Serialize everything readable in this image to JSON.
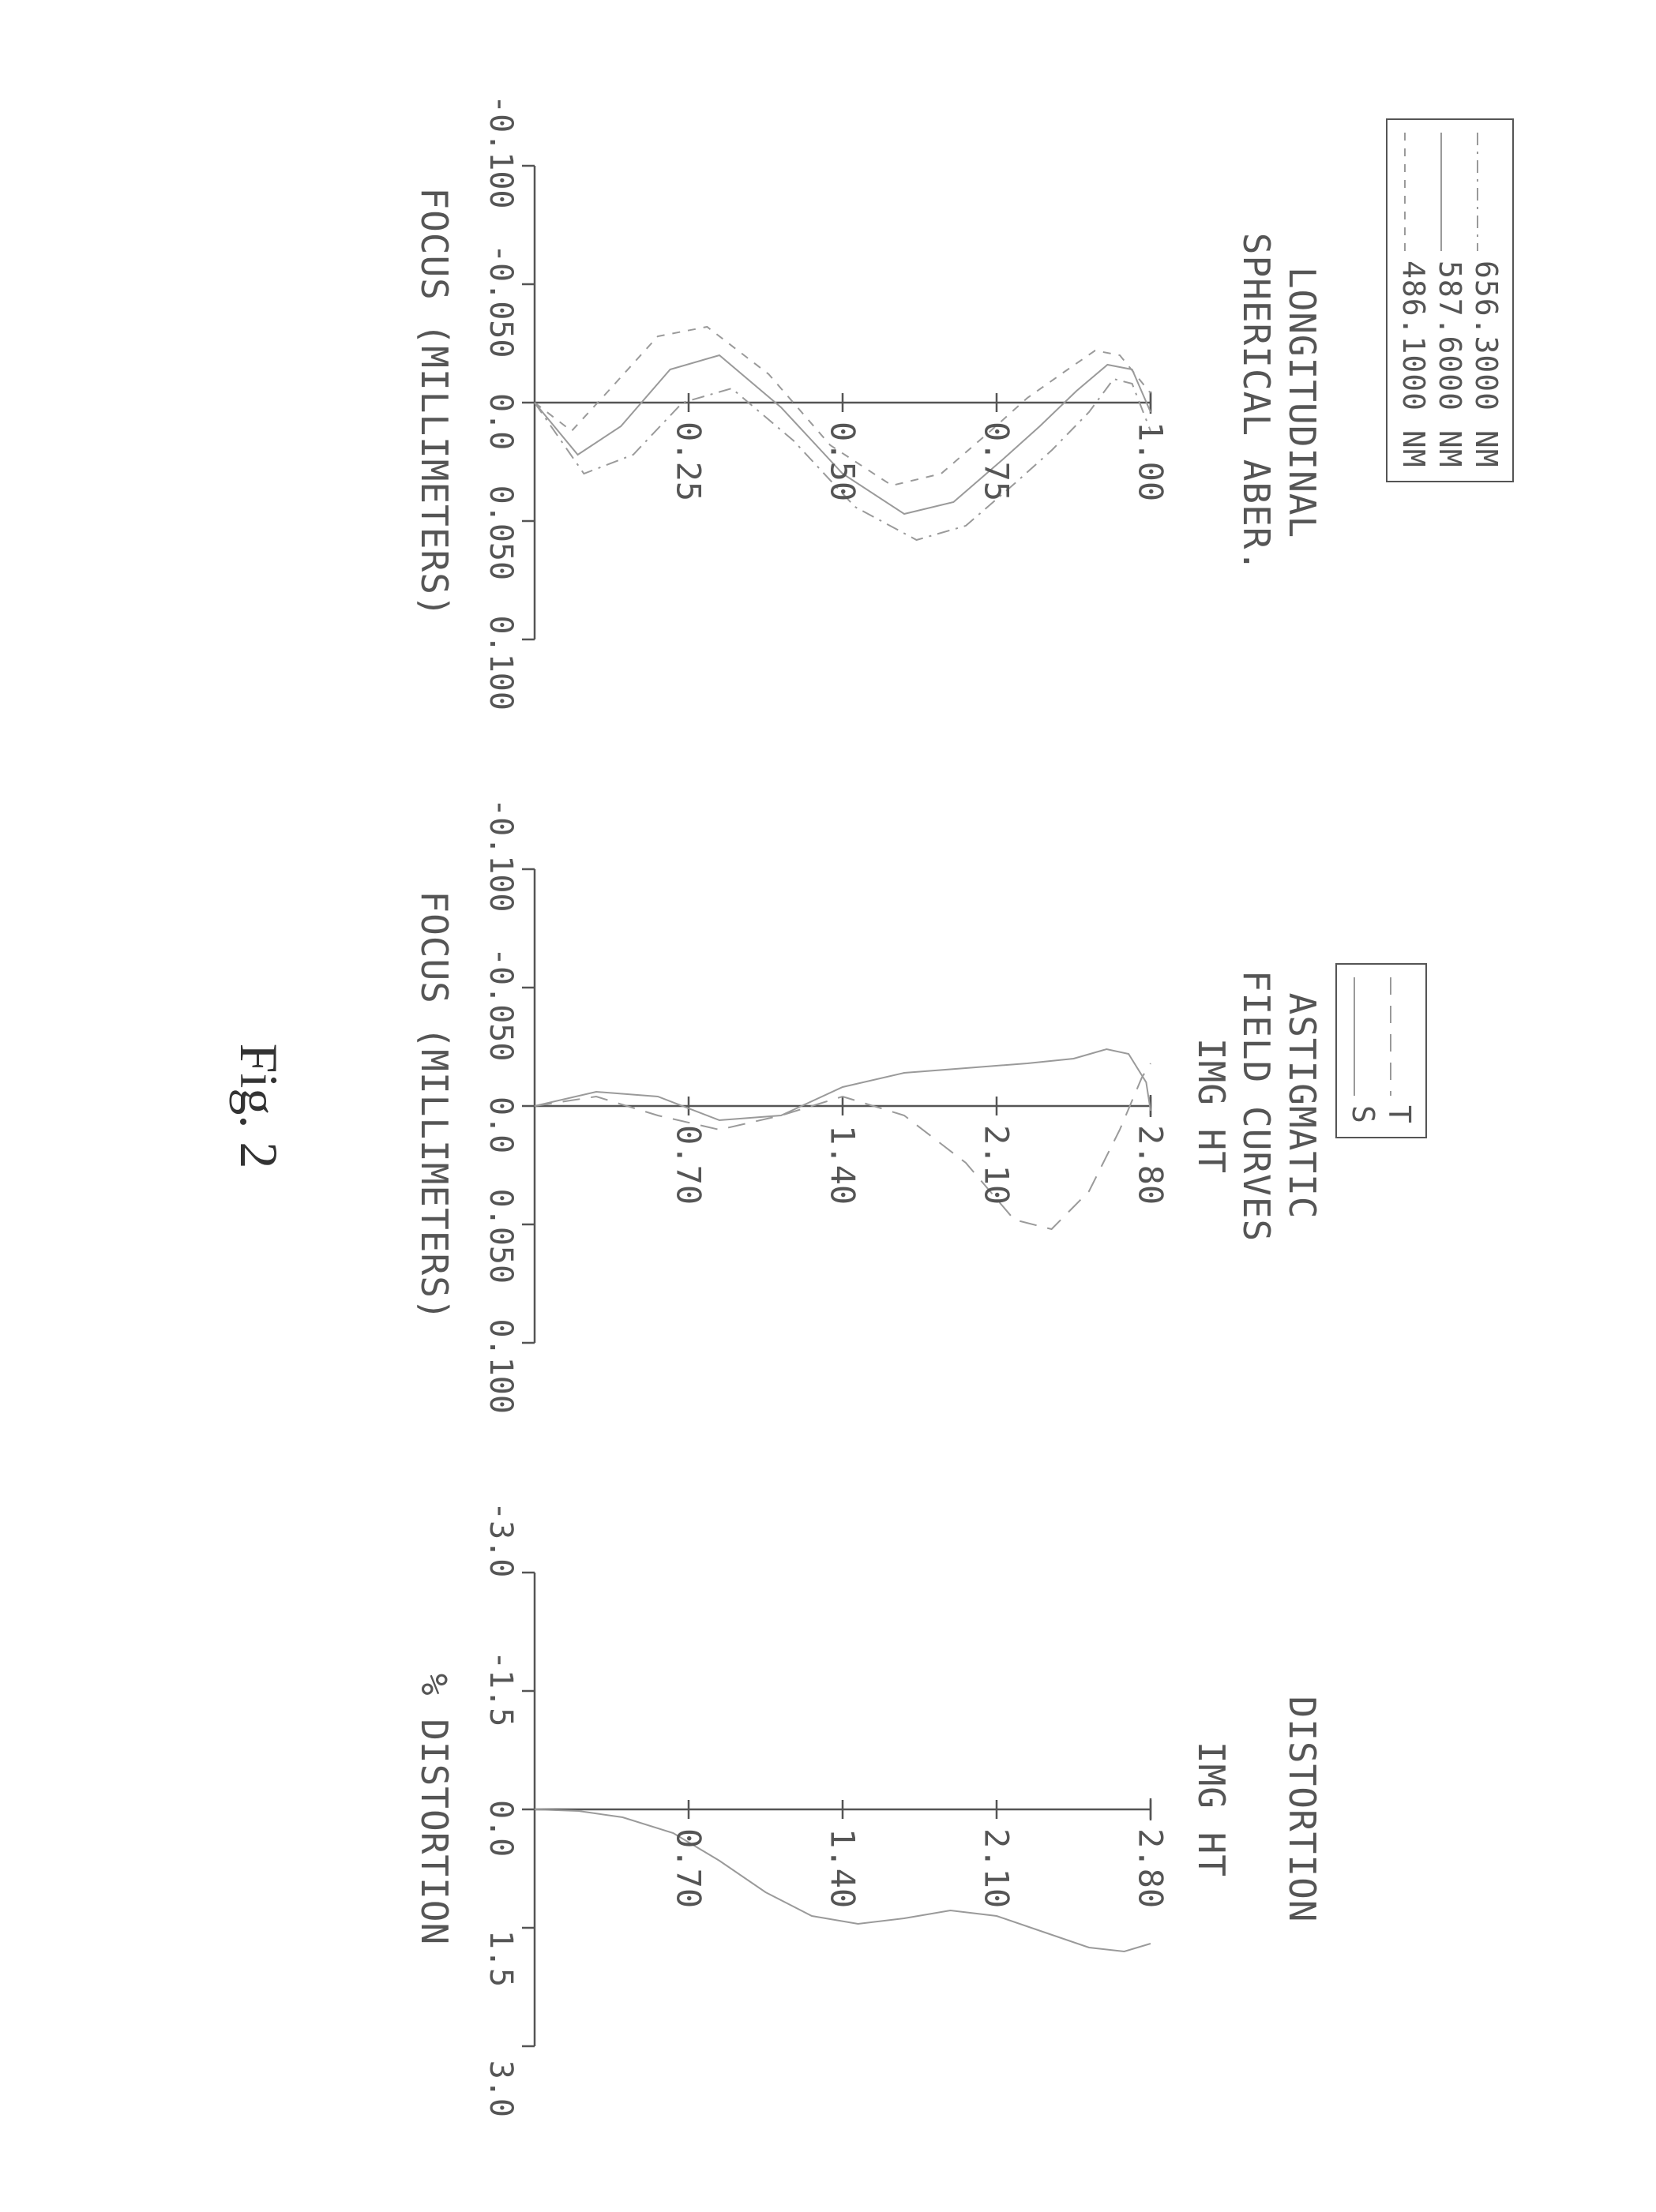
{
  "figure_caption": "Fig. 2",
  "colors": {
    "ink": "#555555",
    "bg": "#ffffff",
    "curve": "#9a9a9a"
  },
  "stroke": {
    "axis_width": 2.5,
    "curve_width": 2,
    "dash_long": "20 14",
    "dash_short": "6 10",
    "dash_dot": "16 8 3 8"
  },
  "legend_wavelengths": {
    "items": [
      {
        "label": "656.3000 NM",
        "dash": "16 8 3 8"
      },
      {
        "label": "587.6000 NM",
        "dash": ""
      },
      {
        "label": "486.1000 NM",
        "dash": "10 10"
      }
    ]
  },
  "legend_ts": {
    "items": [
      {
        "label": "T",
        "dash": "22 14"
      },
      {
        "label": "S",
        "dash": ""
      }
    ]
  },
  "panels": {
    "spherical": {
      "title_line1": "LONGITUDINAL",
      "title_line2": "SPHERICAL ABER.",
      "xlabel": "FOCUS (MILLIMETERS)",
      "xticks": [
        "-0.100",
        "-0.050",
        "0.0",
        "0.050",
        "0.100"
      ],
      "xlim": [
        -0.1,
        0.1
      ],
      "yticks": [
        "1.00",
        "0.75",
        "0.50",
        "0.25"
      ],
      "ylim": [
        0,
        1
      ],
      "series": [
        {
          "dash": "10 10",
          "points": [
            [
              0.0,
              0.0
            ],
            [
              0.012,
              0.06
            ],
            [
              -0.005,
              0.12
            ],
            [
              -0.028,
              0.2
            ],
            [
              -0.032,
              0.28
            ],
            [
              -0.012,
              0.38
            ],
            [
              0.018,
              0.48
            ],
            [
              0.035,
              0.58
            ],
            [
              0.03,
              0.66
            ],
            [
              0.012,
              0.74
            ],
            [
              -0.002,
              0.8
            ],
            [
              -0.013,
              0.86
            ],
            [
              -0.022,
              0.91
            ],
            [
              -0.02,
              0.95
            ],
            [
              -0.004,
              1.0
            ]
          ]
        },
        {
          "dash": "",
          "points": [
            [
              0.0,
              0.0
            ],
            [
              0.022,
              0.07
            ],
            [
              0.01,
              0.14
            ],
            [
              -0.014,
              0.22
            ],
            [
              -0.02,
              0.3
            ],
            [
              0.002,
              0.4
            ],
            [
              0.03,
              0.5
            ],
            [
              0.047,
              0.6
            ],
            [
              0.042,
              0.68
            ],
            [
              0.024,
              0.76
            ],
            [
              0.01,
              0.82
            ],
            [
              -0.005,
              0.88
            ],
            [
              -0.016,
              0.93
            ],
            [
              -0.014,
              0.97
            ],
            [
              0.004,
              1.0
            ]
          ]
        },
        {
          "dash": "16 8 3 8",
          "points": [
            [
              0.0,
              0.0
            ],
            [
              0.03,
              0.08
            ],
            [
              0.022,
              0.16
            ],
            [
              0.0,
              0.24
            ],
            [
              -0.006,
              0.32
            ],
            [
              0.016,
              0.42
            ],
            [
              0.044,
              0.52
            ],
            [
              0.058,
              0.62
            ],
            [
              0.052,
              0.7
            ],
            [
              0.034,
              0.78
            ],
            [
              0.02,
              0.84
            ],
            [
              0.004,
              0.9
            ],
            [
              -0.01,
              0.94
            ],
            [
              -0.008,
              0.97
            ],
            [
              0.012,
              1.0
            ]
          ]
        }
      ]
    },
    "astigmatic": {
      "title_line1": "ASTIGMATIC",
      "title_line2": "FIELD CURVES",
      "title_line3": "IMG HT",
      "xlabel": "FOCUS (MILLIMETERS)",
      "xticks": [
        "-0.100",
        "-0.050",
        "0.0",
        "0.050",
        "0.100"
      ],
      "xlim": [
        -0.1,
        0.1
      ],
      "yticks": [
        "2.80",
        "2.10",
        "1.40",
        "0.70"
      ],
      "ylim": [
        0,
        2.8
      ],
      "series": [
        {
          "name": "S",
          "dash": "",
          "points": [
            [
              0.0,
              0.0
            ],
            [
              -0.006,
              0.28
            ],
            [
              -0.004,
              0.56
            ],
            [
              0.006,
              0.84
            ],
            [
              0.004,
              1.12
            ],
            [
              -0.008,
              1.4
            ],
            [
              -0.014,
              1.68
            ],
            [
              -0.016,
              1.96
            ],
            [
              -0.018,
              2.24
            ],
            [
              -0.02,
              2.45
            ],
            [
              -0.024,
              2.6
            ],
            [
              -0.022,
              2.7
            ],
            [
              -0.01,
              2.78
            ],
            [
              0.002,
              2.8
            ]
          ]
        },
        {
          "name": "T",
          "dash": "22 14",
          "points": [
            [
              0.0,
              0.0
            ],
            [
              -0.004,
              0.28
            ],
            [
              0.004,
              0.56
            ],
            [
              0.01,
              0.84
            ],
            [
              0.004,
              1.12
            ],
            [
              -0.004,
              1.4
            ],
            [
              0.004,
              1.68
            ],
            [
              0.024,
              1.96
            ],
            [
              0.048,
              2.18
            ],
            [
              0.052,
              2.35
            ],
            [
              0.036,
              2.52
            ],
            [
              0.01,
              2.66
            ],
            [
              -0.012,
              2.76
            ],
            [
              -0.018,
              2.8
            ]
          ]
        }
      ]
    },
    "distortion": {
      "title_line1": "DISTORTION",
      "title_line3": "IMG HT",
      "xlabel": "% DISTORTION",
      "xticks": [
        "-3.0",
        "-1.5",
        "0.0",
        "1.5",
        "3.0"
      ],
      "xlim": [
        -3,
        3
      ],
      "yticks": [
        "2.80",
        "2.10",
        "1.40",
        "0.70"
      ],
      "ylim": [
        0,
        2.8
      ],
      "series": [
        {
          "dash": "",
          "points": [
            [
              0.0,
              0.0
            ],
            [
              0.02,
              0.2
            ],
            [
              0.1,
              0.4
            ],
            [
              0.3,
              0.63
            ],
            [
              0.65,
              0.84
            ],
            [
              1.05,
              1.05
            ],
            [
              1.35,
              1.26
            ],
            [
              1.45,
              1.47
            ],
            [
              1.38,
              1.68
            ],
            [
              1.28,
              1.89
            ],
            [
              1.35,
              2.1
            ],
            [
              1.55,
              2.31
            ],
            [
              1.75,
              2.52
            ],
            [
              1.8,
              2.68
            ],
            [
              1.7,
              2.8
            ]
          ]
        }
      ]
    }
  }
}
